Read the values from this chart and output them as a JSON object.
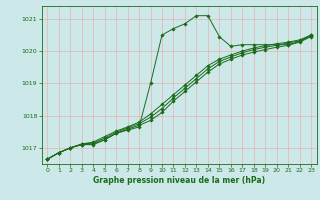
{
  "background_color": "#cce8e8",
  "grid_color": "#e8b0b0",
  "line_color": "#1a6b1a",
  "ylim": [
    1016.5,
    1021.4
  ],
  "xlim": [
    -0.5,
    23.5
  ],
  "yticks": [
    1017,
    1018,
    1019,
    1020,
    1021
  ],
  "xticks": [
    0,
    1,
    2,
    3,
    4,
    5,
    6,
    7,
    8,
    9,
    10,
    11,
    12,
    13,
    14,
    15,
    16,
    17,
    18,
    19,
    20,
    21,
    22,
    23
  ],
  "xlabel": "Graphe pression niveau de la mer (hPa)",
  "series": [
    [
      1016.65,
      1016.85,
      1017.0,
      1017.1,
      1017.1,
      1017.25,
      1017.45,
      1017.55,
      1017.65,
      1019.0,
      1020.5,
      1020.7,
      1020.85,
      1021.1,
      1021.1,
      1020.45,
      1020.15,
      1020.2,
      1020.2,
      1020.2,
      1020.2,
      1020.2,
      1020.3,
      1020.5
    ],
    [
      1016.65,
      1016.85,
      1017.0,
      1017.1,
      1017.12,
      1017.25,
      1017.45,
      1017.58,
      1017.7,
      1017.85,
      1018.1,
      1018.45,
      1018.75,
      1019.05,
      1019.35,
      1019.6,
      1019.75,
      1019.88,
      1019.97,
      1020.05,
      1020.12,
      1020.18,
      1020.28,
      1020.45
    ],
    [
      1016.65,
      1016.85,
      1017.0,
      1017.12,
      1017.15,
      1017.3,
      1017.48,
      1017.62,
      1017.75,
      1017.95,
      1018.22,
      1018.55,
      1018.85,
      1019.15,
      1019.45,
      1019.68,
      1019.82,
      1019.95,
      1020.05,
      1020.12,
      1020.18,
      1020.25,
      1020.32,
      1020.48
    ],
    [
      1016.65,
      1016.85,
      1017.0,
      1017.12,
      1017.18,
      1017.35,
      1017.52,
      1017.65,
      1017.8,
      1018.05,
      1018.35,
      1018.65,
      1018.95,
      1019.25,
      1019.55,
      1019.75,
      1019.88,
      1020.0,
      1020.1,
      1020.17,
      1020.23,
      1020.28,
      1020.35,
      1020.5
    ]
  ]
}
